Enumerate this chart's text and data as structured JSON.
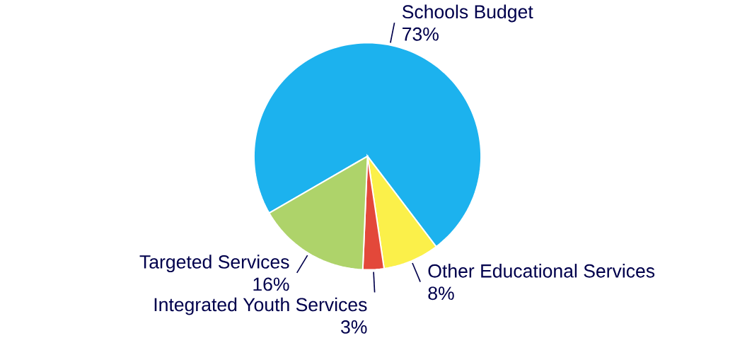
{
  "chart_data": {
    "type": "pie",
    "categories": [
      "Schools Budget",
      "Other Educational Services",
      "Integrated Youth Services",
      "Targeted Services"
    ],
    "values": [
      73,
      8,
      3,
      16
    ],
    "value_labels": [
      "73%",
      "8%",
      "3%",
      "16%"
    ],
    "colors": [
      "#1cb2ee",
      "#fbf04a",
      "#e3483a",
      "#aed36a"
    ]
  }
}
